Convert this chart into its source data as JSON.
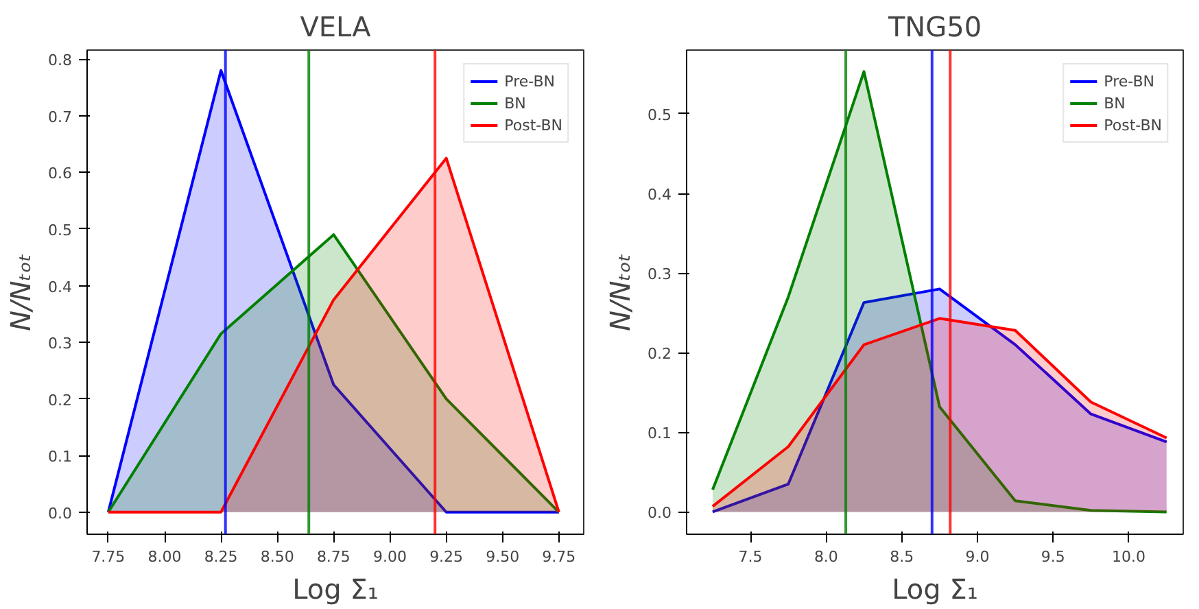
{
  "chart_data": [
    {
      "type": "area",
      "title": "VELA",
      "xlabel": "Log Σ₁",
      "ylabel": "N/Nₜₒₜ",
      "x": [
        7.75,
        8.25,
        8.75,
        9.25,
        9.75
      ],
      "series": [
        {
          "name": "Pre-BN",
          "color": "#0000ff",
          "values": [
            0,
            0.78,
            0.225,
            0,
            0
          ]
        },
        {
          "name": "BN",
          "color": "#008000",
          "values": [
            0,
            0.315,
            0.49,
            0.2,
            0
          ]
        },
        {
          "name": "Post-BN",
          "color": "#ff0000",
          "values": [
            0,
            0,
            0.375,
            0.625,
            0
          ]
        }
      ],
      "ref_lines": [
        {
          "axis": "x",
          "value": 8.27,
          "color": "#0000ff"
        },
        {
          "axis": "x",
          "value": 8.64,
          "color": "#008000"
        },
        {
          "axis": "x",
          "value": 9.2,
          "color": "#ff0000"
        }
      ],
      "xlim": [
        7.656,
        9.86
      ],
      "ylim": [
        -0.039,
        0.816
      ],
      "xticks": [
        7.75,
        {
          "value": 8,
          "label": "8.00"
        },
        8.25,
        {
          "value": 8.5,
          "label": "8.50"
        },
        8.75,
        {
          "value": 9,
          "label": "9.00"
        },
        9.25,
        {
          "value": 9.5,
          "label": "9.50"
        },
        9.75
      ],
      "yticks": [
        {
          "value": 0,
          "label": "0.0"
        },
        0.1,
        0.2,
        0.3,
        0.4,
        0.5,
        0.6,
        0.7,
        0.8
      ],
      "legend": "top right",
      "grid": false
    },
    {
      "type": "area",
      "title": "TNG50",
      "xlabel": "Log Σ₁",
      "ylabel": "N/Nₜₒₜ",
      "x": [
        7.25,
        7.75,
        8.25,
        8.75,
        9.25,
        9.75,
        10.25
      ],
      "series": [
        {
          "name": "Pre-BN",
          "color": "#0000ff",
          "values": [
            0,
            0.035,
            0.263,
            0.28,
            0.21,
            0.123,
            0.088
          ]
        },
        {
          "name": "BN",
          "color": "#008000",
          "values": [
            0.028,
            0.27,
            0.553,
            0.132,
            0.014,
            0.002,
            0
          ]
        },
        {
          "name": "Post-BN",
          "color": "#ff0000",
          "values": [
            0.007,
            0.082,
            0.21,
            0.243,
            0.228,
            0.138,
            0.093
          ]
        }
      ],
      "ref_lines": [
        {
          "axis": "x",
          "value": 8.13,
          "color": "#008000"
        },
        {
          "axis": "x",
          "value": 8.7,
          "color": "#0000ff"
        },
        {
          "axis": "x",
          "value": 8.82,
          "color": "#ff0000"
        }
      ],
      "xlim": [
        7.078,
        10.36
      ],
      "ylim": [
        -0.028,
        0.58
      ],
      "xticks": [
        7.5,
        {
          "value": 8,
          "label": "8.0"
        },
        8.5,
        {
          "value": 9,
          "label": "9.0"
        },
        9.5,
        {
          "value": 10,
          "label": "10.0"
        }
      ],
      "yticks": [
        {
          "value": 0,
          "label": "0.0"
        },
        0.1,
        0.2,
        0.3,
        0.4,
        0.5
      ],
      "legend": "top right",
      "grid": false
    }
  ]
}
